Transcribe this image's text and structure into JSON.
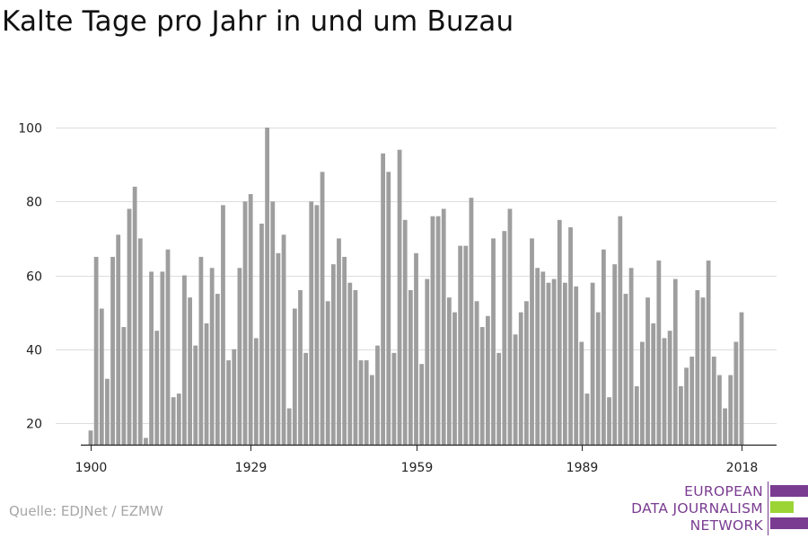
{
  "title": "Kalte Tage pro Jahr in und um Buzau",
  "source": "Quelle: EDJNet / EZMW",
  "logo": {
    "line1": "EUROPEAN",
    "line2": "DATA JOURNALISM",
    "line3": "NETWORK",
    "colors": [
      "#7a3c91",
      "#9bd434",
      "#7a3c91"
    ]
  },
  "chart_data": {
    "type": "bar",
    "title": "Kalte Tage pro Jahr in und um Buzau",
    "xlabel": "",
    "ylabel": "",
    "x_ticks": [
      1900,
      1929,
      1959,
      1989,
      2018
    ],
    "y_ticks": [
      20,
      40,
      60,
      80,
      100
    ],
    "ylim": [
      13,
      100
    ],
    "grid": true,
    "bar_color": "#9e9e9e",
    "x": [
      1900,
      1901,
      1902,
      1903,
      1904,
      1905,
      1906,
      1907,
      1908,
      1909,
      1910,
      1911,
      1912,
      1913,
      1914,
      1915,
      1916,
      1917,
      1918,
      1919,
      1920,
      1921,
      1922,
      1923,
      1924,
      1925,
      1926,
      1927,
      1928,
      1929,
      1930,
      1931,
      1932,
      1933,
      1934,
      1935,
      1936,
      1937,
      1938,
      1939,
      1940,
      1941,
      1942,
      1943,
      1944,
      1945,
      1946,
      1947,
      1948,
      1949,
      1950,
      1951,
      1952,
      1953,
      1954,
      1955,
      1956,
      1957,
      1958,
      1959,
      1960,
      1961,
      1962,
      1963,
      1964,
      1965,
      1966,
      1967,
      1968,
      1969,
      1970,
      1971,
      1972,
      1973,
      1974,
      1975,
      1976,
      1977,
      1978,
      1979,
      1980,
      1981,
      1982,
      1983,
      1984,
      1985,
      1986,
      1987,
      1988,
      1989,
      1990,
      1991,
      1992,
      1993,
      1994,
      1995,
      1996,
      1997,
      1998,
      1999,
      2000,
      2001,
      2002,
      2003,
      2004,
      2005,
      2006,
      2007,
      2008,
      2009,
      2010,
      2011,
      2012,
      2013,
      2014,
      2015,
      2016,
      2017,
      2018
    ],
    "values": [
      18,
      65,
      51,
      32,
      65,
      71,
      46,
      78,
      84,
      70,
      16,
      61,
      45,
      61,
      67,
      27,
      28,
      60,
      54,
      41,
      65,
      47,
      62,
      55,
      79,
      37,
      40,
      62,
      80,
      82,
      43,
      74,
      100,
      80,
      66,
      71,
      24,
      51,
      56,
      39,
      80,
      79,
      88,
      53,
      63,
      70,
      65,
      58,
      56,
      37,
      37,
      33,
      41,
      93,
      88,
      39,
      94,
      75,
      56,
      66,
      36,
      59,
      76,
      76,
      78,
      54,
      50,
      68,
      68,
      81,
      53,
      46,
      49,
      70,
      39,
      72,
      78,
      44,
      50,
      53,
      70,
      62,
      61,
      58,
      59,
      75,
      58,
      73,
      57,
      42,
      28,
      58,
      50,
      67,
      27,
      63,
      76,
      55,
      62,
      30,
      42,
      54,
      47,
      64,
      43,
      45,
      59,
      30,
      35,
      38,
      56,
      54,
      64,
      38,
      33,
      24,
      33,
      42,
      50
    ]
  }
}
